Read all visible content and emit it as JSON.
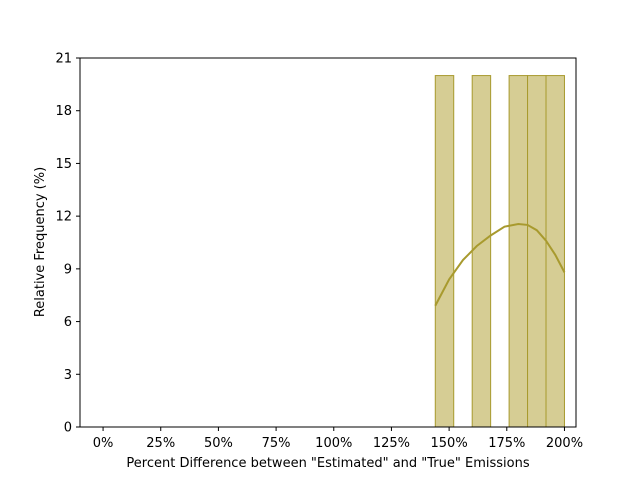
{
  "chart_data": {
    "type": "bar",
    "title": "",
    "xlabel": "Percent Difference between \"Estimated\" and \"True\" Emissions",
    "ylabel": "Relative Frequency (%)",
    "xlim": [
      -10,
      205
    ],
    "ylim": [
      0,
      21
    ],
    "x_ticks": [
      0,
      25,
      50,
      75,
      100,
      125,
      150,
      175,
      200
    ],
    "x_tick_labels": [
      "0%",
      "25%",
      "50%",
      "75%",
      "100%",
      "125%",
      "150%",
      "175%",
      "200%"
    ],
    "y_ticks": [
      0,
      3,
      6,
      9,
      12,
      15,
      18,
      21
    ],
    "y_tick_labels": [
      "0",
      "3",
      "6",
      "9",
      "12",
      "15",
      "18",
      "21"
    ],
    "bars": [
      {
        "x0": 144,
        "x1": 152,
        "value": 20
      },
      {
        "x0": 160,
        "x1": 168,
        "value": 20
      },
      {
        "x0": 176,
        "x1": 184,
        "value": 20
      },
      {
        "x0": 184,
        "x1": 192,
        "value": 20
      },
      {
        "x0": 192,
        "x1": 200,
        "value": 20
      }
    ],
    "kde_curve": {
      "x": [
        144,
        150,
        156,
        162,
        168,
        174,
        180,
        184,
        188,
        192,
        196,
        200
      ],
      "y": [
        6.9,
        8.4,
        9.5,
        10.3,
        10.9,
        11.4,
        11.55,
        11.5,
        11.2,
        10.6,
        9.8,
        8.8
      ]
    },
    "grid": false,
    "colors": {
      "bar_fill": "#d6cd94",
      "bar_edge": "#a89a2e",
      "curve": "#a89a2e"
    }
  }
}
